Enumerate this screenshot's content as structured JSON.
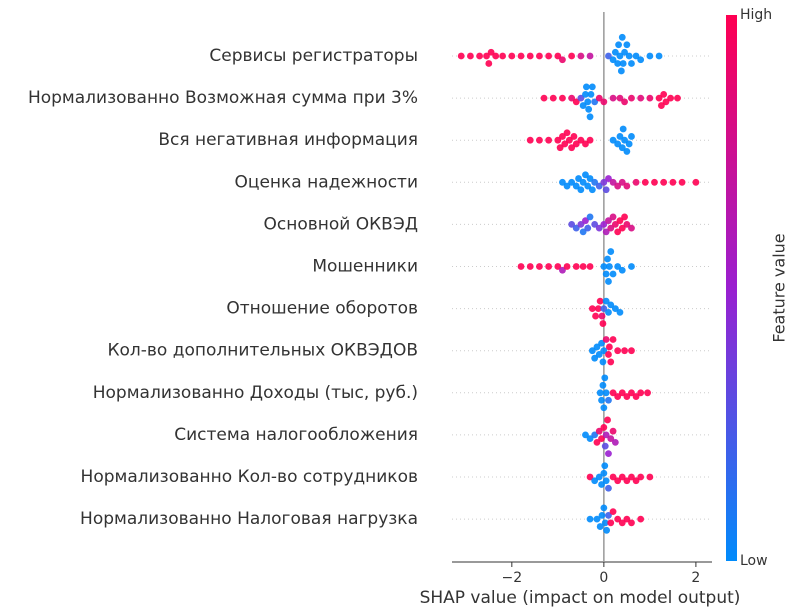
{
  "chart_data": {
    "type": "beeswarm",
    "xlabel": "SHAP value (impact on model output)",
    "xlim": [
      -3.3,
      2.35
    ],
    "xticks": [
      {
        "value": -2,
        "label": "−2"
      },
      0,
      2
    ],
    "colorbar": {
      "label": "Feature value",
      "high": "High",
      "low": "Low",
      "colors": [
        "#008bfb",
        "#9a1fd0",
        "#ff0052"
      ]
    },
    "series": [
      {
        "name": "Сервисы регистраторы",
        "x": [
          -3.1,
          -2.9,
          -2.7,
          -2.55,
          -2.5,
          -2.45,
          -2.35,
          -2.2,
          -2.0,
          -1.8,
          -1.6,
          -1.4,
          -1.2,
          -1.0,
          -0.9,
          -0.7,
          -0.5,
          -0.3,
          0.1,
          0.2,
          0.25,
          0.3,
          0.32,
          0.35,
          0.38,
          0.4,
          0.42,
          0.45,
          0.5,
          0.55,
          0.6,
          0.7,
          0.8,
          1.0,
          1.2
        ],
        "feature_value": [
          1,
          1,
          1,
          1,
          1,
          1,
          1,
          1,
          1,
          1,
          1,
          1,
          1,
          1,
          0.9,
          1,
          0.8,
          0.7,
          0.2,
          0,
          0,
          0,
          0,
          0,
          0,
          0,
          0,
          0,
          0,
          0,
          0,
          0,
          0,
          0,
          0
        ]
      },
      {
        "name": "Нормализованно Возможная сумма при 3%",
        "x": [
          -1.3,
          -1.1,
          -0.9,
          -0.7,
          -0.6,
          -0.5,
          -0.45,
          -0.4,
          -0.38,
          -0.35,
          -0.33,
          -0.3,
          -0.28,
          -0.25,
          -0.2,
          -0.1,
          0.0,
          0.2,
          0.35,
          0.45,
          0.6,
          0.8,
          1.0,
          1.2,
          1.25,
          1.3,
          1.35,
          1.45,
          1.6
        ],
        "feature_value": [
          1,
          1,
          1,
          0.9,
          1,
          0.3,
          0,
          0,
          0,
          0,
          0,
          0,
          0,
          0,
          0.1,
          0.9,
          0.9,
          0.8,
          0.85,
          0.9,
          0.9,
          0.85,
          0.9,
          1,
          1,
          1,
          1,
          1,
          1
        ]
      },
      {
        "name": "Вся негативная информация",
        "x": [
          -1.6,
          -1.4,
          -1.2,
          -1.0,
          -0.95,
          -0.9,
          -0.85,
          -0.8,
          -0.75,
          -0.7,
          -0.65,
          -0.6,
          -0.5,
          -0.4,
          -0.3,
          0.2,
          0.3,
          0.35,
          0.4,
          0.42,
          0.45,
          0.5,
          0.55,
          0.6
        ],
        "feature_value": [
          1,
          1,
          1,
          1,
          1,
          1,
          1,
          1,
          1,
          1,
          1,
          1,
          1,
          1,
          1,
          0,
          0,
          0,
          0,
          0,
          0,
          0,
          0,
          0
        ]
      },
      {
        "name": "Оценка надежности",
        "x": [
          -0.9,
          -0.8,
          -0.7,
          -0.6,
          -0.55,
          -0.5,
          -0.45,
          -0.4,
          -0.35,
          -0.3,
          -0.25,
          -0.2,
          -0.1,
          0.0,
          0.05,
          0.1,
          0.2,
          0.3,
          0.4,
          0.5,
          0.7,
          0.9,
          1.1,
          1.3,
          1.5,
          1.7,
          2.0
        ],
        "feature_value": [
          0,
          0,
          0,
          0,
          0,
          0,
          0,
          0,
          0,
          0,
          0,
          0.1,
          0.2,
          0.4,
          0.3,
          0.5,
          0.7,
          0.8,
          0.8,
          0.85,
          0.9,
          1,
          1,
          1,
          1,
          1,
          1
        ]
      },
      {
        "name": "Основной ОКВЭД",
        "x": [
          -0.7,
          -0.6,
          -0.5,
          -0.45,
          -0.4,
          -0.35,
          -0.3,
          -0.2,
          -0.1,
          0.0,
          0.05,
          0.1,
          0.15,
          0.2,
          0.25,
          0.3,
          0.35,
          0.4,
          0.45,
          0.5,
          0.6
        ],
        "feature_value": [
          0.3,
          0.2,
          0.4,
          0.1,
          0.5,
          0.2,
          0.1,
          0.3,
          0.4,
          0.5,
          0.6,
          0.7,
          0.8,
          0.8,
          0.9,
          1,
          1,
          1,
          1,
          0.9,
          0.8
        ]
      },
      {
        "name": "Мошенники",
        "x": [
          -1.8,
          -1.6,
          -1.4,
          -1.2,
          -1.0,
          -0.9,
          -0.8,
          -0.6,
          -0.45,
          -0.3,
          0.0,
          0.05,
          0.08,
          0.1,
          0.12,
          0.15,
          0.2,
          0.3,
          0.4,
          0.6
        ],
        "feature_value": [
          1,
          1,
          1,
          1,
          1,
          0.6,
          1,
          1,
          1,
          1,
          0,
          0,
          0,
          0,
          0,
          0,
          0,
          0,
          0,
          0
        ]
      },
      {
        "name": "Отношение оборотов",
        "x": [
          -0.25,
          -0.18,
          -0.12,
          -0.08,
          -0.04,
          -0.02,
          0.0,
          0.05,
          0.1,
          0.15,
          0.25,
          0.35
        ],
        "feature_value": [
          1,
          1,
          1,
          1,
          0.9,
          1,
          0.2,
          0,
          0,
          0,
          0,
          0
        ]
      },
      {
        "name": "Кол-во дополнительных ОКВЭДОВ",
        "x": [
          -0.25,
          -0.2,
          -0.15,
          -0.1,
          -0.05,
          0.0,
          -0.02,
          0.05,
          0.1,
          0.12,
          0.15,
          0.2,
          0.3,
          0.45,
          0.6
        ],
        "feature_value": [
          0,
          0,
          0,
          0,
          0,
          0,
          0,
          0.9,
          1,
          1,
          1,
          1,
          1,
          1,
          1
        ]
      },
      {
        "name": "Нормализованно Доходы (тыс, руб.)",
        "x": [
          -0.08,
          -0.05,
          -0.02,
          0.0,
          0.02,
          0.05,
          0.1,
          0.2,
          0.3,
          0.4,
          0.5,
          0.6,
          0.7,
          0.8,
          0.95
        ],
        "feature_value": [
          0,
          0,
          0,
          0,
          0,
          0,
          0.1,
          1,
          1,
          1,
          1,
          1,
          1,
          1,
          1
        ]
      },
      {
        "name": "Система налогообложения",
        "x": [
          -0.4,
          -0.3,
          -0.2,
          -0.15,
          -0.1,
          -0.05,
          0.0,
          0.03,
          0.05,
          0.08,
          0.1,
          0.15,
          0.2,
          0.25
        ],
        "feature_value": [
          0,
          0,
          0.1,
          1,
          0.9,
          1,
          1,
          0.3,
          0.6,
          1,
          0.5,
          0.7,
          0.9,
          0.6
        ]
      },
      {
        "name": "Нормализованно Кол-во сотрудников",
        "x": [
          -0.3,
          -0.2,
          -0.1,
          -0.05,
          0.0,
          0.02,
          0.05,
          0.1,
          0.2,
          0.3,
          0.4,
          0.5,
          0.6,
          0.7,
          0.8,
          1.0
        ],
        "feature_value": [
          1,
          0,
          0,
          0,
          0,
          0,
          0,
          0.2,
          1,
          1,
          1,
          1,
          1,
          1,
          1,
          1
        ]
      },
      {
        "name": "Нормализованно Налоговая нагрузка",
        "x": [
          -0.3,
          -0.15,
          -0.08,
          -0.04,
          0.0,
          0.03,
          0.06,
          0.1,
          0.15,
          0.2,
          0.3,
          0.4,
          0.5,
          0.6,
          0.8
        ],
        "feature_value": [
          0,
          0,
          0,
          0,
          0,
          0,
          0,
          0.2,
          1,
          1,
          1,
          1,
          1,
          1,
          1
        ]
      }
    ]
  }
}
